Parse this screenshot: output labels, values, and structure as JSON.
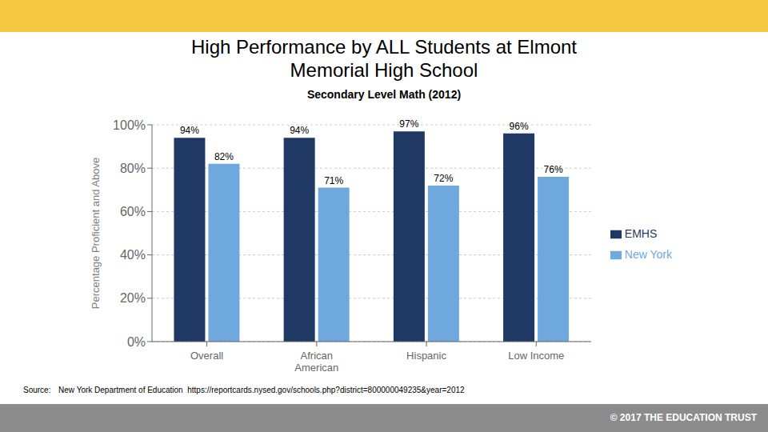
{
  "chart_data": {
    "type": "bar",
    "title": "High Performance by ALL Students at Elmont\nMemorial High School",
    "subtitle": "Secondary Level Math (2012)",
    "ylabel": "Percentage Proficient and Above",
    "categories": [
      "Overall",
      "African\nAmerican",
      "Hispanic",
      "Low Income"
    ],
    "series": [
      {
        "name": "EMHS",
        "color": "#1F3864",
        "values": [
          94,
          94,
          97,
          96
        ],
        "value_labels": [
          "94%",
          "94%",
          "97%",
          "96%"
        ]
      },
      {
        "name": "New York",
        "color": "#6FA8DC",
        "values": [
          82,
          71,
          72,
          76
        ],
        "value_labels": [
          "82%",
          "71%",
          "72%",
          "76%"
        ]
      }
    ],
    "ylim": [
      0,
      100
    ],
    "yticks": [
      {
        "value": 0,
        "label": "0%"
      },
      {
        "value": 20,
        "label": "20%"
      },
      {
        "value": 40,
        "label": "40%"
      },
      {
        "value": 60,
        "label": "60%"
      },
      {
        "value": 80,
        "label": "80%"
      },
      {
        "value": 100,
        "label": "100%"
      }
    ],
    "grid": true,
    "legend": "right",
    "data_labels": true,
    "annotations": [
      "Source:",
      "  New York Department of Education  https://reportcards.nysed.gov/schools.php?district=800000049235&year=2012",
      "© 2017 THE EDUCATION TRUST"
    ]
  }
}
